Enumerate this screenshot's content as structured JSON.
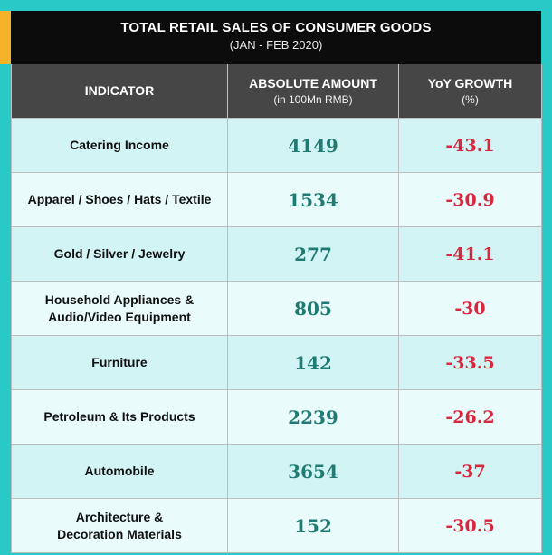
{
  "header": {
    "title": "TOTAL RETAIL SALES OF CONSUMER GOODS",
    "subtitle": "(JAN - FEB 2020)"
  },
  "columns": {
    "indicator": "INDICATOR",
    "amount": "ABSOLUTE AMOUNT",
    "amount_unit": "(in 100Mn RMB)",
    "growth": "YoY GROWTH",
    "growth_unit": "(%)"
  },
  "rows": [
    {
      "indicator": "Catering Income",
      "amount": "4149",
      "growth": "-43.1"
    },
    {
      "indicator": "Apparel / Shoes / Hats / Textile",
      "amount": "1534",
      "growth": "-30.9"
    },
    {
      "indicator": "Gold / Silver / Jewelry",
      "amount": "277",
      "growth": "-41.1"
    },
    {
      "indicator_line1": "Household Appliances &",
      "indicator_line2": "Audio/Video Equipment",
      "amount": "805",
      "growth": "-30"
    },
    {
      "indicator": "Furniture",
      "amount": "142",
      "growth": "-33.5"
    },
    {
      "indicator": "Petroleum & Its Products",
      "amount": "2239",
      "growth": "-26.2"
    },
    {
      "indicator": "Automobile",
      "amount": "3654",
      "growth": "-37"
    },
    {
      "indicator_line1": "Architecture &",
      "indicator_line2": "Decoration Materials",
      "amount": "152",
      "growth": "-30.5"
    }
  ],
  "colors": {
    "frame": "#29c9c8",
    "accent": "#f4b32b",
    "title_bg": "#0c0c0c",
    "header_bg": "#464646",
    "amount_text": "#1f7b74",
    "growth_text": "#d8283d"
  }
}
